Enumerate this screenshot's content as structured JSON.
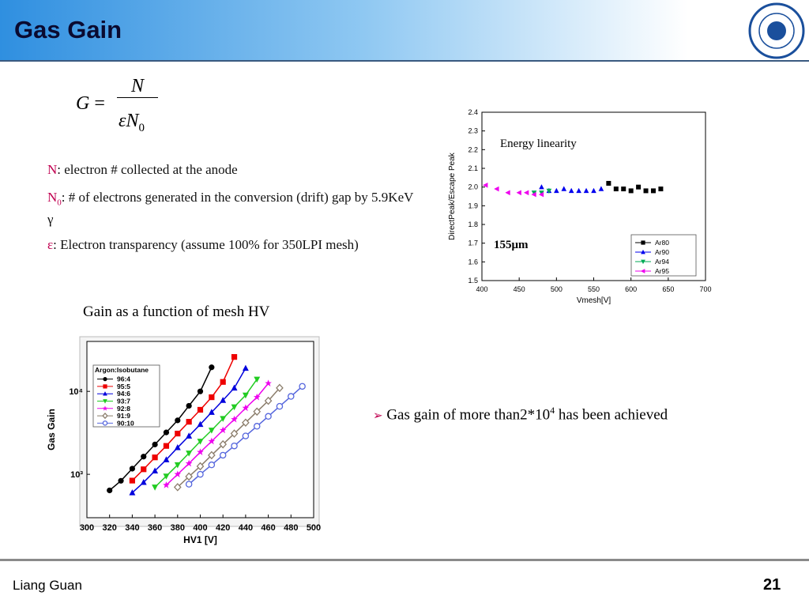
{
  "header": {
    "title": "Gas Gain"
  },
  "formula": {
    "lhs": "G",
    "eq": "=",
    "numerator": "N",
    "denominator": "εN",
    "subscript": "0"
  },
  "bullets": [
    {
      "key": "N",
      "text": ": electron # collected at the anode"
    },
    {
      "key": "N",
      "sub": "0",
      "text": ": # of electrons generated in the conversion (drift) gap by 5.9KeV γ"
    },
    {
      "key": "ε",
      "text": ": Electron transparency (assume 100% for 350LPI mesh)"
    }
  ],
  "caption": "Gain as a function of mesh HV",
  "conclusion": {
    "marker": "➢",
    "text": "Gas gain of more than2*10",
    "sup": "4",
    "rest": " has been achieved"
  },
  "footer": {
    "author": "Liang Guan",
    "page": "21"
  },
  "chart_data": [
    {
      "type": "scatter",
      "x_label": "Vmesh[V]",
      "y_label": "DirectPeak/Escape Peak",
      "annotations": [
        "Energy linearity",
        "155μm"
      ],
      "xlim": [
        400,
        700
      ],
      "xticks": [
        400,
        450,
        500,
        550,
        600,
        650,
        700
      ],
      "ylim": [
        1.5,
        2.4
      ],
      "yticks": [
        1.5,
        1.6,
        1.7,
        1.8,
        1.9,
        {
          "value": 2.0,
          "label": "2.0"
        },
        2.1,
        2.2,
        2.3,
        2.4
      ],
      "legend": "lower right",
      "series": [
        {
          "name": "Ar80",
          "color": "#000000",
          "marker": "square",
          "x": [
            570,
            580,
            590,
            600,
            610,
            620,
            630,
            640
          ],
          "values": [
            2.02,
            1.99,
            1.99,
            1.98,
            2.0,
            1.98,
            1.98,
            1.99
          ]
        },
        {
          "name": "Ar90",
          "color": "#0000ee",
          "marker": "triangle-up",
          "x": [
            480,
            490,
            500,
            510,
            520,
            530,
            540,
            550,
            560
          ],
          "values": [
            2.0,
            1.98,
            1.98,
            1.99,
            1.98,
            1.98,
            1.98,
            1.98,
            1.99
          ]
        },
        {
          "name": "Ar94",
          "color": "#00aa55",
          "marker": "triangle-down",
          "x": [
            470,
            480,
            490
          ],
          "values": [
            1.97,
            1.97,
            1.98
          ]
        },
        {
          "name": "Ar95",
          "color": "#ee00ee",
          "marker": "triangle-left",
          "x": [
            405,
            420,
            435,
            450,
            460,
            470,
            480
          ],
          "values": [
            2.01,
            1.99,
            1.97,
            1.97,
            1.97,
            1.96,
            1.96
          ]
        }
      ]
    },
    {
      "type": "line",
      "x_label": "HV1 [V]",
      "y_label": "Gas Gain",
      "legend_title": "Argon:Isobutane",
      "legend": "upper left",
      "log_y": true,
      "xlim": [
        300,
        500
      ],
      "xticks": [
        300,
        320,
        340,
        360,
        380,
        400,
        420,
        440,
        460,
        480,
        500
      ],
      "ylim": [
        300,
        40000
      ],
      "yticks": [
        {
          "value": 1000,
          "label": "10³"
        },
        {
          "value": 10000,
          "label": "10⁴"
        }
      ],
      "series": [
        {
          "name": "96:4",
          "color": "#000000",
          "marker": "circle",
          "x": [
            320,
            330,
            340,
            350,
            360,
            370,
            380,
            390,
            400,
            410
          ],
          "values": [
            640,
            836,
            1170,
            1635,
            2290,
            3200,
            4470,
            6700,
            10000,
            19500
          ]
        },
        {
          "name": "95:5",
          "color": "#ee0000",
          "marker": "square",
          "x": [
            340,
            350,
            360,
            370,
            380,
            390,
            400,
            410,
            420,
            430
          ],
          "values": [
            840,
            1150,
            1600,
            2200,
            3100,
            4300,
            6000,
            8500,
            13000,
            26000
          ]
        },
        {
          "name": "94:6",
          "color": "#0000dd",
          "marker": "triangle-up",
          "x": [
            340,
            350,
            360,
            370,
            380,
            390,
            400,
            410,
            420,
            430,
            440
          ],
          "values": [
            600,
            800,
            1100,
            1500,
            2100,
            2900,
            4000,
            5600,
            7800,
            11000,
            19000
          ]
        },
        {
          "name": "93:7",
          "color": "#22cc22",
          "marker": "triangle-down",
          "x": [
            360,
            370,
            380,
            390,
            400,
            410,
            420,
            430,
            440,
            450
          ],
          "values": [
            700,
            950,
            1300,
            1800,
            2500,
            3400,
            4700,
            6500,
            9000,
            14000
          ]
        },
        {
          "name": "92:8",
          "color": "#ee00ee",
          "marker": "star",
          "x": [
            370,
            380,
            390,
            400,
            410,
            420,
            430,
            440,
            450,
            460
          ],
          "values": [
            740,
            1000,
            1350,
            1850,
            2500,
            3400,
            4600,
            6300,
            8500,
            12500
          ]
        },
        {
          "name": "91:9",
          "color": "#8b7d6b",
          "marker": "diamond-open",
          "x": [
            380,
            390,
            400,
            410,
            420,
            430,
            440,
            450,
            460,
            470
          ],
          "values": [
            700,
            940,
            1250,
            1700,
            2300,
            3100,
            4200,
            5700,
            7700,
            11000
          ]
        },
        {
          "name": "90:10",
          "color": "#5566dd",
          "marker": "circle-open",
          "x": [
            390,
            400,
            410,
            420,
            430,
            440,
            450,
            460,
            470,
            480,
            490
          ],
          "values": [
            760,
            1000,
            1300,
            1700,
            2200,
            2900,
            3800,
            5000,
            6600,
            8700,
            11500
          ]
        }
      ]
    }
  ]
}
